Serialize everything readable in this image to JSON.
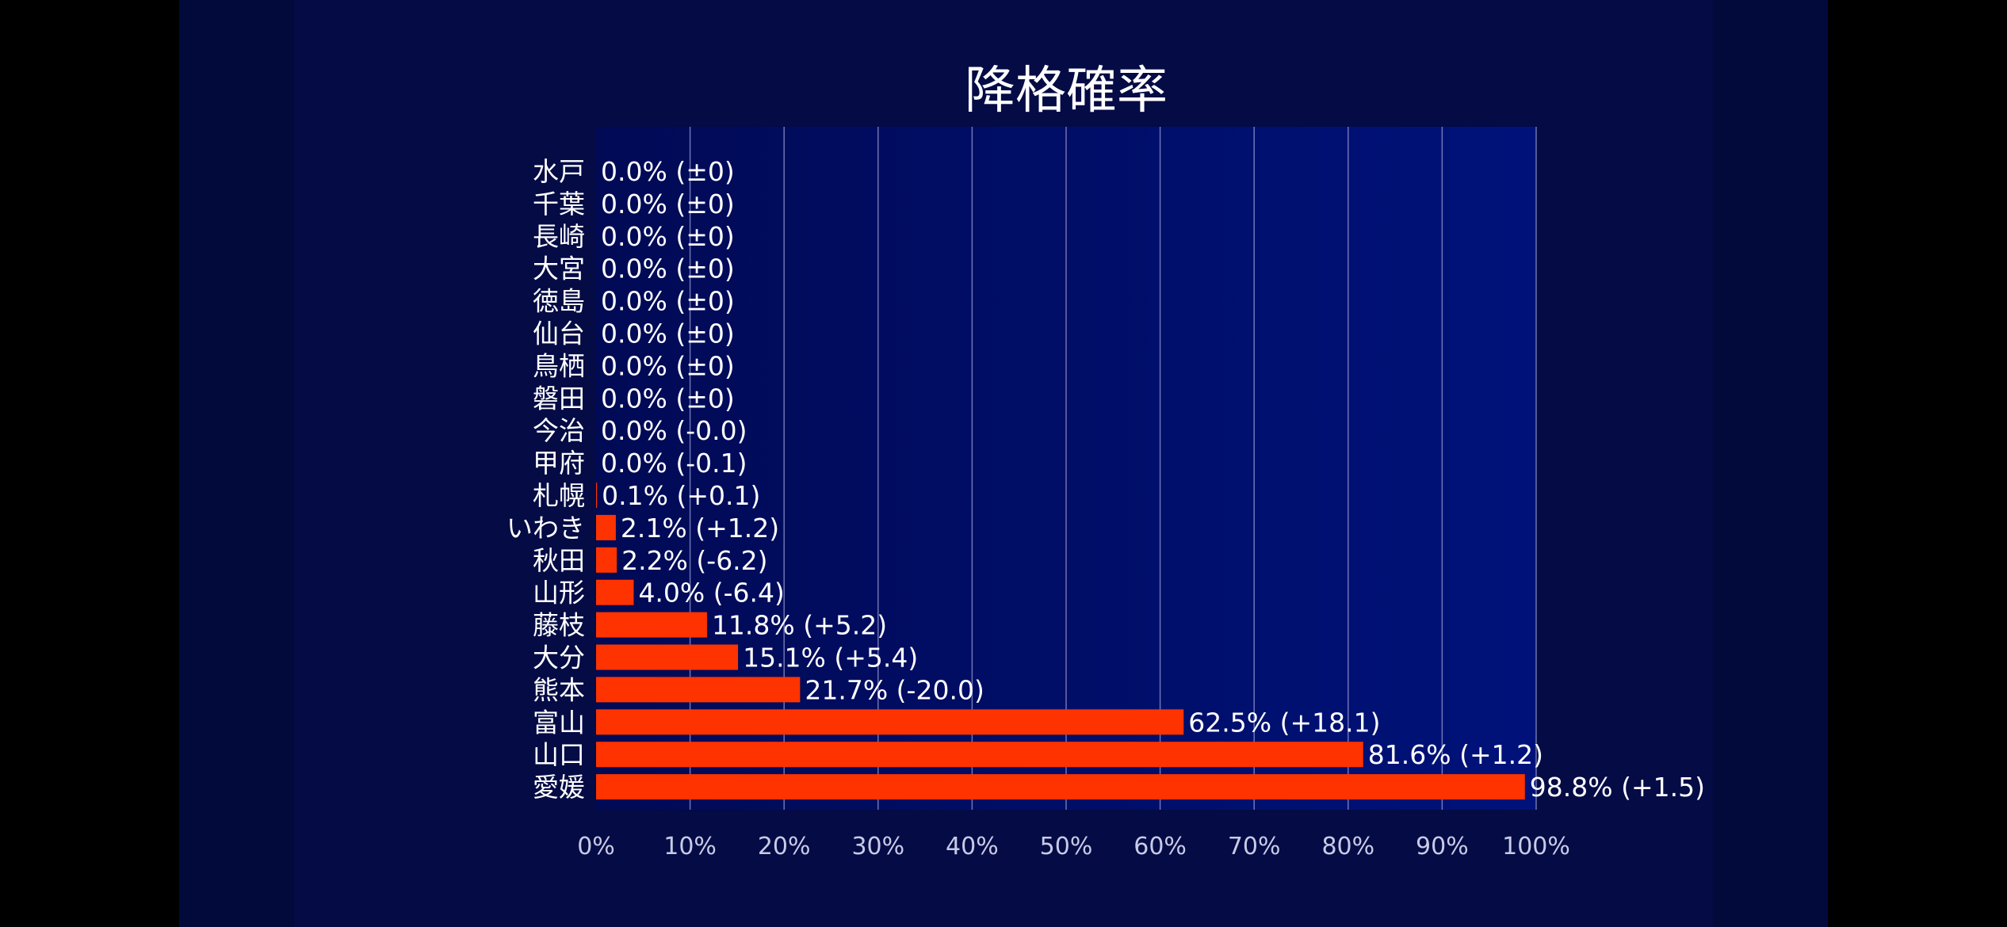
{
  "colors": {
    "page_background": "#000000",
    "stage_background": "#020a3c",
    "plot_background_left": "#010a55",
    "plot_background_right": "#00127a",
    "bar": "#ff3300",
    "text": "#ffffff",
    "tick_text": "#c8cbe6",
    "grid": "#8a8fc8"
  },
  "chart_data": {
    "type": "bar",
    "orientation": "horizontal",
    "title": "降格確率",
    "xlim": [
      0,
      100
    ],
    "x_ticks": [
      "0%",
      "10%",
      "20%",
      "30%",
      "40%",
      "50%",
      "60%",
      "70%",
      "80%",
      "90%",
      "100%"
    ],
    "grid": "vertical lines",
    "categories": [
      "水戸",
      "千葉",
      "長崎",
      "大宮",
      "徳島",
      "仙台",
      "鳥栖",
      "磐田",
      "今治",
      "甲府",
      "札幌",
      "いわき",
      "秋田",
      "山形",
      "藤枝",
      "大分",
      "熊本",
      "富山",
      "山口",
      "愛媛"
    ],
    "values": [
      0.0,
      0.0,
      0.0,
      0.0,
      0.0,
      0.0,
      0.0,
      0.0,
      0.0,
      0.0,
      0.1,
      2.1,
      2.2,
      4.0,
      11.8,
      15.1,
      21.7,
      62.5,
      81.6,
      98.8
    ],
    "data_labels": [
      "0.0% (±0)",
      "0.0% (±0)",
      "0.0% (±0)",
      "0.0% (±0)",
      "0.0% (±0)",
      "0.0% (±0)",
      "0.0% (±0)",
      "0.0% (±0)",
      "0.0% (-0.0)",
      "0.0% (-0.1)",
      "0.1% (+0.1)",
      "2.1% (+1.2)",
      "2.2% (-6.2)",
      "4.0% (-6.4)",
      "11.8% (+5.2)",
      "15.1% (+5.4)",
      "21.7% (-20.0)",
      "62.5% (+18.1)",
      "81.6% (+1.2)",
      "98.8% (+1.5)"
    ]
  }
}
